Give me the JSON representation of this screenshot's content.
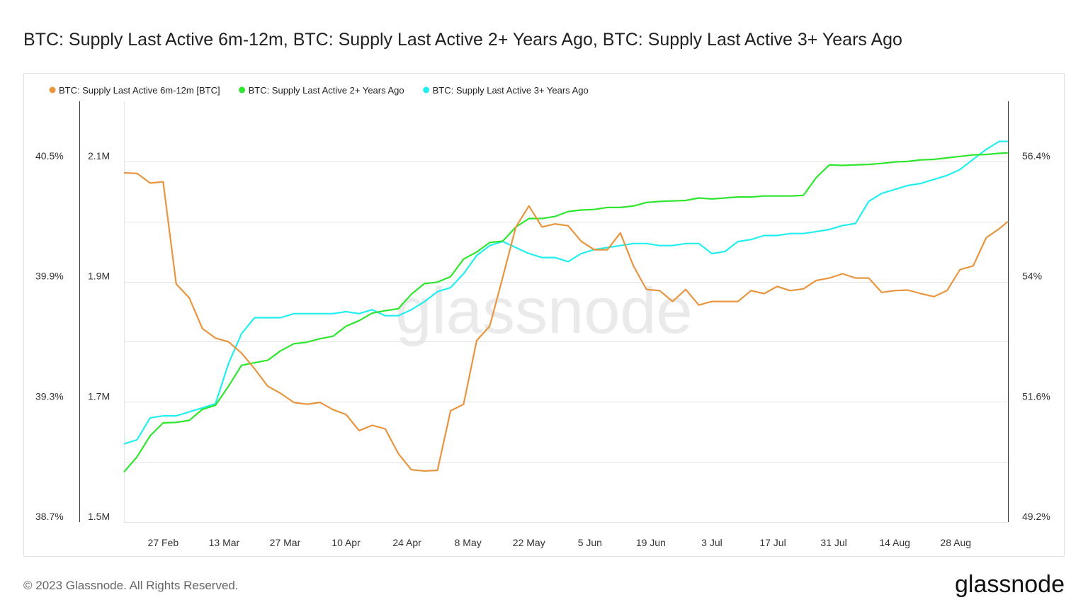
{
  "chart_data": {
    "type": "line",
    "title": "BTC: Supply Last Active 6m-12m, BTC: Supply Last Active 2+ Years Ago, BTC: Supply Last Active 3+ Years Ago",
    "watermark": "glassnode",
    "grid": true,
    "legend": "top-left",
    "x": [
      "18 Feb",
      "21 Feb",
      "24 Feb",
      "27 Feb",
      "2 Mar",
      "5 Mar",
      "8 Mar",
      "11 Mar",
      "14 Mar",
      "17 Mar",
      "20 Mar",
      "23 Mar",
      "26 Mar",
      "29 Mar",
      "1 Apr",
      "4 Apr",
      "7 Apr",
      "10 Apr",
      "13 Apr",
      "16 Apr",
      "19 Apr",
      "22 Apr",
      "25 Apr",
      "28 Apr",
      "1 May",
      "4 May",
      "7 May",
      "10 May",
      "13 May",
      "16 May",
      "19 May",
      "22 May",
      "25 May",
      "28 May",
      "31 May",
      "3 Jun",
      "6 Jun",
      "9 Jun",
      "12 Jun",
      "15 Jun",
      "18 Jun",
      "21 Jun",
      "24 Jun",
      "27 Jun",
      "30 Jun",
      "3 Jul",
      "6 Jul",
      "9 Jul",
      "12 Jul",
      "15 Jul",
      "18 Jul",
      "21 Jul",
      "24 Jul",
      "27 Jul",
      "30 Jul",
      "2 Aug",
      "5 Aug",
      "8 Aug",
      "11 Aug",
      "14 Aug",
      "17 Aug",
      "20 Aug",
      "23 Aug",
      "26 Aug",
      "29 Aug",
      "1 Sep",
      "4 Sep",
      "7 Sep",
      "9 Sep"
    ],
    "xlim": [
      "18 Feb",
      "9 Sep"
    ],
    "xticks": [
      "27 Feb",
      "13 Mar",
      "27 Mar",
      "10 Apr",
      "24 Apr",
      "8 May",
      "22 May",
      "5 Jun",
      "19 Jun",
      "3 Jul",
      "17 Jul",
      "31 Jul",
      "14 Aug",
      "28 Aug"
    ],
    "ylim": [
      1500000,
      2200000
    ],
    "yticks": [
      {
        "value": 1500000,
        "label": "1.5M"
      },
      {
        "value": 1700000,
        "label": "1.7M"
      },
      {
        "value": 1900000,
        "label": "1.9M"
      },
      {
        "value": 2100000,
        "label": "2.1M"
      }
    ],
    "y_minor_grid": [
      1600000,
      1800000,
      2000000
    ],
    "y2lim": [
      49.2,
      57.6
    ],
    "y2ticks": [
      {
        "value": 49.2,
        "label": "49.2%"
      },
      {
        "value": 51.6,
        "label": "51.6%"
      },
      {
        "value": 54,
        "label": "54%"
      },
      {
        "value": 56.4,
        "label": "56.4%"
      }
    ],
    "y3lim": [
      38.7,
      40.8
    ],
    "y3ticks": [
      {
        "value": 38.7,
        "label": "38.7%"
      },
      {
        "value": 39.3,
        "label": "39.3%"
      },
      {
        "value": 39.9,
        "label": "39.9%"
      },
      {
        "value": 40.5,
        "label": "40.5%"
      }
    ],
    "series": [
      {
        "name": "BTC: Supply Last Active 6m-12m [BTC]",
        "color": "#e8953f",
        "axis": "y",
        "values": [
          2081000,
          2080000,
          2064000,
          2066000,
          1896000,
          1873000,
          1822000,
          1806000,
          1800000,
          1781000,
          1755000,
          1726000,
          1714000,
          1699000,
          1696000,
          1699000,
          1687000,
          1679000,
          1652000,
          1661000,
          1655000,
          1614000,
          1587000,
          1585000,
          1586000,
          1685000,
          1696000,
          1802000,
          1826000,
          1908000,
          1991000,
          2026000,
          1991000,
          1996000,
          1993000,
          1967000,
          1953000,
          1953000,
          1981000,
          1926000,
          1887000,
          1885000,
          1867000,
          1887000,
          1861000,
          1867000,
          1867000,
          1867000,
          1885000,
          1880000,
          1892000,
          1885000,
          1888000,
          1902000,
          1906000,
          1913000,
          1906000,
          1906000,
          1882000,
          1885000,
          1886000,
          1880000,
          1875000,
          1885000,
          1920000,
          1926000,
          1973000,
          1988000,
          2000000
        ]
      },
      {
        "name": "BTC: Supply Last Active 2+ Years Ago",
        "color": "#2ee62e",
        "axis": "y2",
        "values": [
          50.2,
          50.5,
          50.92,
          51.18,
          51.19,
          51.23,
          51.45,
          51.53,
          51.91,
          52.33,
          52.38,
          52.43,
          52.62,
          52.76,
          52.79,
          52.86,
          52.91,
          53.11,
          53.22,
          53.37,
          53.42,
          53.46,
          53.75,
          53.96,
          53.99,
          54.1,
          54.45,
          54.59,
          54.78,
          54.81,
          55.09,
          55.26,
          55.26,
          55.3,
          55.4,
          55.43,
          55.44,
          55.48,
          55.48,
          55.51,
          55.58,
          55.6,
          55.61,
          55.62,
          55.67,
          55.65,
          55.67,
          55.69,
          55.69,
          55.71,
          55.71,
          55.71,
          55.72,
          56.08,
          56.33,
          56.32,
          56.33,
          56.34,
          56.36,
          56.39,
          56.4,
          56.43,
          56.44,
          56.47,
          56.5,
          56.53,
          56.54,
          56.56,
          56.57
        ]
      },
      {
        "name": "BTC: Supply Last Active 3+ Years Ago",
        "color": "#22eef0",
        "axis": "y3",
        "values": [
          39.09,
          39.11,
          39.22,
          39.23,
          39.23,
          39.25,
          39.27,
          39.29,
          39.49,
          39.64,
          39.72,
          39.72,
          39.72,
          39.74,
          39.74,
          39.74,
          39.74,
          39.75,
          39.74,
          39.76,
          39.73,
          39.73,
          39.76,
          39.8,
          39.85,
          39.87,
          39.94,
          40.03,
          40.08,
          40.1,
          40.07,
          40.04,
          40.02,
          40.02,
          40.0,
          40.04,
          40.06,
          40.07,
          40.08,
          40.09,
          40.09,
          40.08,
          40.08,
          40.09,
          40.09,
          40.04,
          40.05,
          40.1,
          40.11,
          40.13,
          40.13,
          40.14,
          40.14,
          40.15,
          40.16,
          40.18,
          40.19,
          40.3,
          40.34,
          40.36,
          40.38,
          40.39,
          40.41,
          40.43,
          40.46,
          40.51,
          40.56,
          40.6,
          40.6
        ]
      }
    ]
  },
  "footer": {
    "copyright": "© 2023 Glassnode. All Rights Reserved.",
    "logo": "glassnode"
  }
}
